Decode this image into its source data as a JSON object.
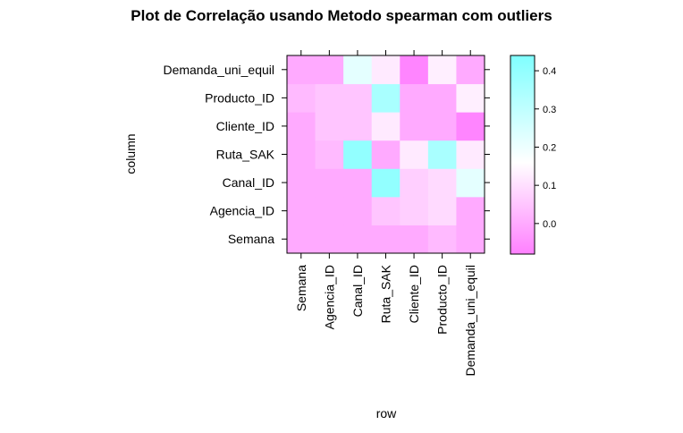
{
  "chart_data": {
    "type": "heatmap",
    "title": "Plot de Correlação usando Metodo spearman com outliers",
    "xlabel": "row",
    "ylabel": "column",
    "rows": [
      "Semana",
      "Agencia_ID",
      "Canal_ID",
      "Ruta_SAK",
      "Cliente_ID",
      "Producto_ID",
      "Demanda_uni_equil"
    ],
    "columns": [
      "Semana",
      "Agencia_ID",
      "Canal_ID",
      "Ruta_SAK",
      "Cliente_ID",
      "Producto_ID",
      "Demanda_uni_equil"
    ],
    "values": [
      [
        0.0,
        0.0,
        0.0,
        0.0,
        0.0,
        0.03,
        0.0
      ],
      [
        0.0,
        0.0,
        0.0,
        0.03,
        0.05,
        0.05,
        0.0
      ],
      [
        0.0,
        0.0,
        0.0,
        0.4,
        0.05,
        0.05,
        0.22
      ],
      [
        0.0,
        0.05,
        0.4,
        0.0,
        0.12,
        0.35,
        0.12
      ],
      [
        0.0,
        0.07,
        0.07,
        0.12,
        0.0,
        0.0,
        -0.07
      ],
      [
        0.03,
        0.09,
        0.09,
        0.35,
        0.0,
        0.0,
        0.13
      ],
      [
        0.0,
        0.0,
        0.22,
        0.12,
        -0.07,
        0.13,
        0.0
      ]
    ],
    "colorbar": {
      "ticks": [
        0.0,
        0.1,
        0.2,
        0.3,
        0.4
      ],
      "range": [
        -0.08,
        0.44
      ],
      "low_color": "#ff80ff",
      "mid_color": "#ffffff",
      "high_color": "#80ffff"
    },
    "colorbar_tick_labels": [
      "0.0",
      "0.1",
      "0.2",
      "0.3",
      "0.4"
    ]
  }
}
